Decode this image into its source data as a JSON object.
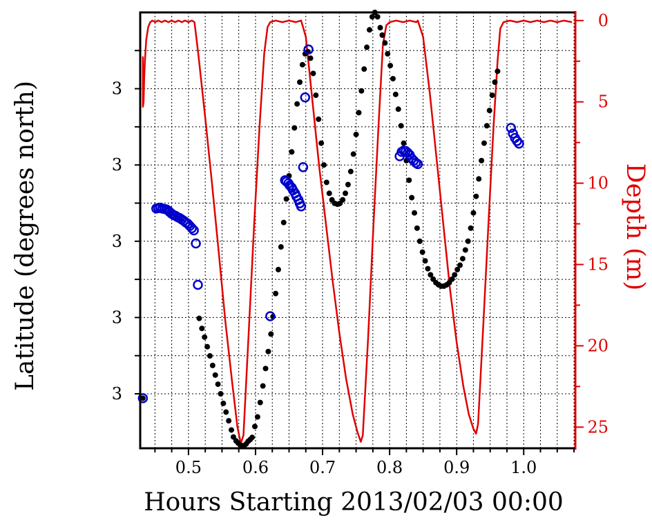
{
  "chart_data": {
    "type": "scatter",
    "title": "",
    "xlabel": "Hours Starting 2013/02/03 00:00",
    "ylabel_left": "Latitude (degrees north)",
    "ylabel_right": "Depth (m)",
    "xlim": [
      0.428,
      1.077
    ],
    "x_ticks": [
      "0.5",
      "0.6",
      "0.7",
      "0.8",
      "0.9",
      "1.0"
    ],
    "x_tick_values": [
      0.5,
      0.6,
      0.7,
      0.8,
      0.9,
      1.0
    ],
    "left_tick_labels": [
      "3",
      "3",
      "3",
      "3",
      "3"
    ],
    "left_tick_fracs": [
      0.125,
      0.3,
      0.475,
      0.65,
      0.825
    ],
    "right_ylim": [
      26.3,
      -0.5
    ],
    "right_ticks": [
      "0",
      "5",
      "10",
      "15",
      "20",
      "25"
    ],
    "right_tick_values": [
      0,
      5,
      10,
      15,
      20,
      25
    ],
    "grid": true,
    "colors": {
      "latitude_points": "#000000",
      "depth_line": "#e00000",
      "open_circles": "#0000cc",
      "right_axis": "#e00000"
    },
    "series": [
      {
        "kind": "filled-points",
        "axis": "left-normalized",
        "points": [
          [
            0.432,
            0.115
          ],
          [
            0.516,
            0.298
          ],
          [
            0.52,
            0.275
          ],
          [
            0.524,
            0.255
          ],
          [
            0.528,
            0.233
          ],
          [
            0.532,
            0.212
          ],
          [
            0.536,
            0.19
          ],
          [
            0.54,
            0.168
          ],
          [
            0.544,
            0.147
          ],
          [
            0.548,
            0.125
          ],
          [
            0.552,
            0.103
          ],
          [
            0.556,
            0.083
          ],
          [
            0.56,
            0.063
          ],
          [
            0.564,
            0.042
          ],
          [
            0.567,
            0.026
          ],
          [
            0.571,
            0.017
          ],
          [
            0.574,
            0.012
          ],
          [
            0.577,
            0.008
          ],
          [
            0.58,
            0.006
          ],
          [
            0.583,
            0.006
          ],
          [
            0.586,
            0.01
          ],
          [
            0.589,
            0.016
          ],
          [
            0.592,
            0.02
          ],
          [
            0.595,
            0.025
          ],
          [
            0.599,
            0.05
          ],
          [
            0.603,
            0.072
          ],
          [
            0.607,
            0.105
          ],
          [
            0.611,
            0.143
          ],
          [
            0.615,
            0.183
          ],
          [
            0.619,
            0.222
          ],
          [
            0.623,
            0.262
          ],
          [
            0.626,
            0.302
          ],
          [
            0.63,
            0.355
          ],
          [
            0.634,
            0.41
          ],
          [
            0.638,
            0.462
          ],
          [
            0.642,
            0.518
          ],
          [
            0.646,
            0.572
          ],
          [
            0.65,
            0.625
          ],
          [
            0.654,
            0.68
          ],
          [
            0.658,
            0.735
          ],
          [
            0.662,
            0.79
          ],
          [
            0.666,
            0.84
          ],
          [
            0.67,
            0.88
          ],
          [
            0.674,
            0.905
          ],
          [
            0.678,
            0.91
          ],
          [
            0.682,
            0.895
          ],
          [
            0.686,
            0.86
          ],
          [
            0.69,
            0.81
          ],
          [
            0.694,
            0.755
          ],
          [
            0.698,
            0.7
          ],
          [
            0.702,
            0.65
          ],
          [
            0.706,
            0.61
          ],
          [
            0.71,
            0.585
          ],
          [
            0.714,
            0.57
          ],
          [
            0.718,
            0.562
          ],
          [
            0.722,
            0.56
          ],
          [
            0.726,
            0.562
          ],
          [
            0.73,
            0.57
          ],
          [
            0.734,
            0.585
          ],
          [
            0.738,
            0.605
          ],
          [
            0.742,
            0.635
          ],
          [
            0.746,
            0.675
          ],
          [
            0.75,
            0.72
          ],
          [
            0.754,
            0.77
          ],
          [
            0.758,
            0.82
          ],
          [
            0.762,
            0.87
          ],
          [
            0.766,
            0.92
          ],
          [
            0.77,
            0.96
          ],
          [
            0.774,
            0.99
          ],
          [
            0.778,
            1.0
          ],
          [
            0.782,
            0.99
          ],
          [
            0.786,
            0.965
          ],
          [
            0.789,
            0.948
          ],
          [
            0.793,
            0.93
          ],
          [
            0.797,
            0.905
          ],
          [
            0.801,
            0.878
          ],
          [
            0.805,
            0.848
          ],
          [
            0.809,
            0.812
          ],
          [
            0.813,
            0.778
          ],
          [
            0.817,
            0.74
          ],
          [
            0.821,
            0.7
          ],
          [
            0.825,
            0.66
          ],
          [
            0.829,
            0.615
          ],
          [
            0.833,
            0.575
          ],
          [
            0.837,
            0.54
          ],
          [
            0.841,
            0.505
          ],
          [
            0.845,
            0.475
          ],
          [
            0.849,
            0.45
          ],
          [
            0.853,
            0.43
          ],
          [
            0.857,
            0.412
          ],
          [
            0.861,
            0.398
          ],
          [
            0.865,
            0.388
          ],
          [
            0.869,
            0.38
          ],
          [
            0.873,
            0.375
          ],
          [
            0.877,
            0.372
          ],
          [
            0.881,
            0.372
          ],
          [
            0.885,
            0.375
          ],
          [
            0.889,
            0.38
          ],
          [
            0.893,
            0.388
          ],
          [
            0.897,
            0.398
          ],
          [
            0.901,
            0.41
          ],
          [
            0.905,
            0.42
          ],
          [
            0.909,
            0.435
          ],
          [
            0.913,
            0.455
          ],
          [
            0.917,
            0.475
          ],
          [
            0.921,
            0.505
          ],
          [
            0.925,
            0.54
          ],
          [
            0.929,
            0.578
          ],
          [
            0.933,
            0.618
          ],
          [
            0.937,
            0.66
          ],
          [
            0.941,
            0.7
          ],
          [
            0.945,
            0.74
          ],
          [
            0.949,
            0.775
          ],
          [
            0.953,
            0.81
          ],
          [
            0.957,
            0.84
          ],
          [
            0.961,
            0.865
          ]
        ]
      },
      {
        "kind": "open-circles",
        "axis": "left-normalized",
        "points": [
          [
            0.432,
            0.115
          ],
          [
            0.452,
            0.55
          ],
          [
            0.455,
            0.551
          ],
          [
            0.458,
            0.552
          ],
          [
            0.461,
            0.55
          ],
          [
            0.464,
            0.549
          ],
          [
            0.467,
            0.548
          ],
          [
            0.47,
            0.545
          ],
          [
            0.472,
            0.542
          ],
          [
            0.475,
            0.538
          ],
          [
            0.478,
            0.535
          ],
          [
            0.481,
            0.533
          ],
          [
            0.484,
            0.53
          ],
          [
            0.487,
            0.528
          ],
          [
            0.49,
            0.525
          ],
          [
            0.493,
            0.522
          ],
          [
            0.496,
            0.518
          ],
          [
            0.499,
            0.515
          ],
          [
            0.502,
            0.51
          ],
          [
            0.505,
            0.505
          ],
          [
            0.508,
            0.5
          ],
          [
            0.511,
            0.47
          ],
          [
            0.514,
            0.375
          ],
          [
            0.622,
            0.303
          ],
          [
            0.644,
            0.615
          ],
          [
            0.646,
            0.612
          ],
          [
            0.649,
            0.608
          ],
          [
            0.651,
            0.603
          ],
          [
            0.654,
            0.598
          ],
          [
            0.656,
            0.592
          ],
          [
            0.659,
            0.585
          ],
          [
            0.661,
            0.578
          ],
          [
            0.664,
            0.57
          ],
          [
            0.666,
            0.562
          ],
          [
            0.668,
            0.555
          ],
          [
            0.671,
            0.645
          ],
          [
            0.674,
            0.805
          ],
          [
            0.679,
            0.915
          ],
          [
            0.815,
            0.67
          ],
          [
            0.818,
            0.68
          ],
          [
            0.821,
            0.683
          ],
          [
            0.824,
            0.682
          ],
          [
            0.827,
            0.678
          ],
          [
            0.83,
            0.673
          ],
          [
            0.833,
            0.665
          ],
          [
            0.836,
            0.66
          ],
          [
            0.839,
            0.655
          ],
          [
            0.842,
            0.652
          ],
          [
            0.981,
            0.735
          ],
          [
            0.984,
            0.722
          ],
          [
            0.987,
            0.712
          ],
          [
            0.99,
            0.705
          ],
          [
            0.993,
            0.699
          ]
        ]
      },
      {
        "kind": "line",
        "axis": "right",
        "name": "",
        "points": [
          [
            0.432,
            2.2
          ],
          [
            0.432,
            5.3
          ],
          [
            0.433,
            5.0
          ],
          [
            0.434,
            3.5
          ],
          [
            0.435,
            2.5
          ],
          [
            0.437,
            1.2
          ],
          [
            0.44,
            0.4
          ],
          [
            0.443,
            0.1
          ],
          [
            0.446,
            0.0
          ],
          [
            0.45,
            0.1
          ],
          [
            0.455,
            0.0
          ],
          [
            0.46,
            0.1
          ],
          [
            0.465,
            0.0
          ],
          [
            0.47,
            0.1
          ],
          [
            0.475,
            0.0
          ],
          [
            0.48,
            0.1
          ],
          [
            0.485,
            0.0
          ],
          [
            0.49,
            0.1
          ],
          [
            0.495,
            0.0
          ],
          [
            0.5,
            0.1
          ],
          [
            0.505,
            0.0
          ],
          [
            0.509,
            0.1
          ],
          [
            0.515,
            2.2
          ],
          [
            0.525,
            6.0
          ],
          [
            0.535,
            10.0
          ],
          [
            0.545,
            14.2
          ],
          [
            0.555,
            18.5
          ],
          [
            0.565,
            22.2
          ],
          [
            0.573,
            25.0
          ],
          [
            0.578,
            26.0
          ],
          [
            0.582,
            25.5
          ],
          [
            0.59,
            19.0
          ],
          [
            0.598,
            12.5
          ],
          [
            0.606,
            6.5
          ],
          [
            0.613,
            2.0
          ],
          [
            0.618,
            0.4
          ],
          [
            0.622,
            0.1
          ],
          [
            0.63,
            0.0
          ],
          [
            0.64,
            0.1
          ],
          [
            0.65,
            0.0
          ],
          [
            0.66,
            0.1
          ],
          [
            0.668,
            0.0
          ],
          [
            0.675,
            1.0
          ],
          [
            0.685,
            5.0
          ],
          [
            0.695,
            9.0
          ],
          [
            0.705,
            12.5
          ],
          [
            0.715,
            16.0
          ],
          [
            0.725,
            19.2
          ],
          [
            0.735,
            22.0
          ],
          [
            0.745,
            24.2
          ],
          [
            0.752,
            25.3
          ],
          [
            0.757,
            25.9
          ],
          [
            0.76,
            25.5
          ],
          [
            0.768,
            19.5
          ],
          [
            0.776,
            12.5
          ],
          [
            0.784,
            6.0
          ],
          [
            0.79,
            1.5
          ],
          [
            0.795,
            0.3
          ],
          [
            0.8,
            0.1
          ],
          [
            0.81,
            0.0
          ],
          [
            0.82,
            0.1
          ],
          [
            0.83,
            0.0
          ],
          [
            0.84,
            0.1
          ],
          [
            0.842,
            0.0
          ],
          [
            0.85,
            1.0
          ],
          [
            0.86,
            4.5
          ],
          [
            0.87,
            8.5
          ],
          [
            0.88,
            12.5
          ],
          [
            0.89,
            16.5
          ],
          [
            0.9,
            19.8
          ],
          [
            0.91,
            22.5
          ],
          [
            0.918,
            24.2
          ],
          [
            0.925,
            25.1
          ],
          [
            0.929,
            25.4
          ],
          [
            0.932,
            24.8
          ],
          [
            0.94,
            18.5
          ],
          [
            0.948,
            12.0
          ],
          [
            0.955,
            6.5
          ],
          [
            0.961,
            2.5
          ],
          [
            0.965,
            0.5
          ],
          [
            0.97,
            0.1
          ],
          [
            0.98,
            0.0
          ],
          [
            0.99,
            0.1
          ],
          [
            1.0,
            0.0
          ],
          [
            1.01,
            0.1
          ],
          [
            1.02,
            0.0
          ],
          [
            1.03,
            0.1
          ],
          [
            1.04,
            0.0
          ],
          [
            1.05,
            0.1
          ],
          [
            1.06,
            0.0
          ],
          [
            1.072,
            0.1
          ]
        ]
      }
    ]
  }
}
